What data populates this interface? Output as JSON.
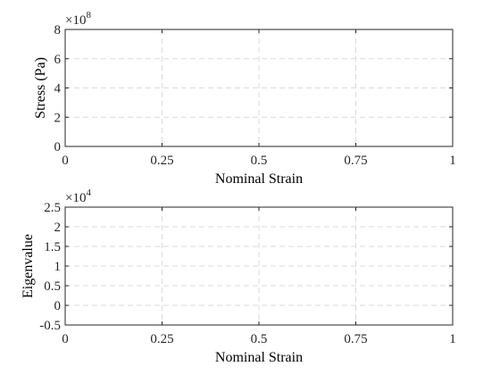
{
  "chart_data": [
    {
      "type": "line",
      "title": "",
      "xlabel": "Nominal Strain",
      "ylabel": "Stress (Pa)",
      "xlim": [
        0,
        1
      ],
      "ylim": [
        0,
        8
      ],
      "y_multiplier": {
        "base": "×10",
        "exponent": "8"
      },
      "x_ticks": [
        {
          "value": 0,
          "label": "0"
        },
        {
          "value": 0.25,
          "label": "0.25"
        },
        {
          "value": 0.5,
          "label": "0.5"
        },
        {
          "value": 0.75,
          "label": "0.75"
        },
        {
          "value": 1,
          "label": "1"
        }
      ],
      "y_ticks": [
        {
          "value": 0,
          "label": "0"
        },
        {
          "value": 2,
          "label": "2"
        },
        {
          "value": 4,
          "label": "4"
        },
        {
          "value": 6,
          "label": "6"
        },
        {
          "value": 8,
          "label": "8"
        }
      ],
      "grid": true,
      "grid_color": "#d9d9d9",
      "series": []
    },
    {
      "type": "line",
      "title": "",
      "xlabel": "Nominal Strain",
      "ylabel": "Eigenvalue",
      "xlim": [
        0,
        1
      ],
      "ylim": [
        -0.5,
        2.5
      ],
      "y_multiplier": {
        "base": "×10",
        "exponent": "4"
      },
      "x_ticks": [
        {
          "value": 0,
          "label": "0"
        },
        {
          "value": 0.25,
          "label": "0.25"
        },
        {
          "value": 0.5,
          "label": "0.5"
        },
        {
          "value": 0.75,
          "label": "0.75"
        },
        {
          "value": 1,
          "label": "1"
        }
      ],
      "y_ticks": [
        {
          "value": -0.5,
          "label": "-0.5"
        },
        {
          "value": 0,
          "label": "0"
        },
        {
          "value": 0.5,
          "label": "0.5"
        },
        {
          "value": 1,
          "label": "1"
        },
        {
          "value": 1.5,
          "label": "1.5"
        },
        {
          "value": 2,
          "label": "2"
        },
        {
          "value": 2.5,
          "label": "2.5"
        }
      ],
      "grid": true,
      "grid_color": "#d9d9d9",
      "series": []
    }
  ]
}
